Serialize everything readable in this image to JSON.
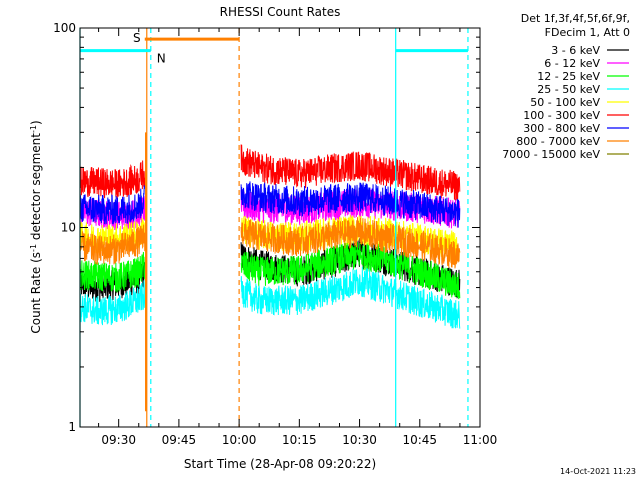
{
  "chart_data": {
    "type": "line",
    "title": "RHESSI Count Rates",
    "xlabel": "Start Time (28-Apr-08 09:20:22)",
    "ylabel_parts": [
      "Count Rate (s",
      "-1",
      " detector segment",
      "-1",
      ")"
    ],
    "y_scale": "log",
    "ylim": [
      1,
      100
    ],
    "y_ticks": [
      {
        "value": 1,
        "label": "1"
      },
      {
        "value": 10,
        "label": "10"
      },
      {
        "value": 100,
        "label": "100"
      }
    ],
    "xlim": [
      "09:20:22",
      "11:00:00"
    ],
    "x_ticks": [
      {
        "value": "09:30",
        "label": "09:30"
      },
      {
        "value": "09:45",
        "label": "09:45"
      },
      {
        "value": "10:00",
        "label": "10:00"
      },
      {
        "value": "10:15",
        "label": "10:15"
      },
      {
        "value": "10:30",
        "label": "10:30"
      },
      {
        "value": "10:45",
        "label": "10:45"
      },
      {
        "value": "11:00",
        "label": "11:00"
      }
    ],
    "legend_header": [
      "Det 1f,3f,4f,5f,6f,9f,",
      "FDecim 1, Att 0"
    ],
    "legend_position": "right",
    "series": [
      {
        "name": "3 - 6 keV",
        "color": "#000000",
        "segments": [
          {
            "x": [
              "09:20:22",
              "09:25",
              "09:30",
              "09:35",
              "09:36:30"
            ],
            "y": [
              5.2,
              5.0,
              5.2,
              5.5,
              6.0
            ]
          },
          {
            "x": [
              "10:00:30",
              "10:05",
              "10:15",
              "10:25",
              "10:30",
              "10:35",
              "10:45",
              "10:55"
            ],
            "y": [
              7.2,
              6.5,
              6.0,
              6.8,
              7.5,
              7.0,
              6.0,
              5.2
            ]
          }
        ]
      },
      {
        "name": "6 - 12 keV",
        "color": "#ff00ff",
        "segments": [
          {
            "x": [
              "09:20:22",
              "09:25",
              "09:30",
              "09:35",
              "09:36:30"
            ],
            "y": [
              12.0,
              11.8,
              11.5,
              11.8,
              12.5
            ]
          },
          {
            "x": [
              "10:00:30",
              "10:05",
              "10:15",
              "10:25",
              "10:30",
              "10:35",
              "10:45",
              "10:55"
            ],
            "y": [
              13.0,
              12.5,
              12.2,
              13.0,
              13.3,
              13.0,
              12.5,
              11.6
            ]
          }
        ]
      },
      {
        "name": "12 - 25 keV",
        "color": "#00ff00",
        "segments": [
          {
            "x": [
              "09:20:22",
              "09:25",
              "09:30",
              "09:35",
              "09:36:30"
            ],
            "y": [
              5.8,
              5.7,
              5.6,
              6.0,
              6.5
            ]
          },
          {
            "x": [
              "10:00:30",
              "10:05",
              "10:15",
              "10:25",
              "10:30",
              "10:35",
              "10:45",
              "10:55"
            ],
            "y": [
              6.5,
              6.0,
              6.1,
              7.0,
              7.3,
              7.0,
              6.0,
              5.0
            ]
          }
        ]
      },
      {
        "name": "25 - 50 keV",
        "color": "#00ffff",
        "segments": [
          {
            "x": [
              "09:20:22",
              "09:25",
              "09:30",
              "09:35",
              "09:36:30"
            ],
            "y": [
              4.0,
              3.8,
              3.9,
              4.3,
              4.6
            ]
          },
          {
            "x": [
              "10:00:30",
              "10:05",
              "10:15",
              "10:25",
              "10:30",
              "10:35",
              "10:45",
              "10:55"
            ],
            "y": [
              4.8,
              4.3,
              4.3,
              5.0,
              5.4,
              5.0,
              4.2,
              3.6
            ]
          }
        ]
      },
      {
        "name": "50 - 100 keV",
        "color": "#ffff00",
        "segments": [
          {
            "x": [
              "09:20:22",
              "09:25",
              "09:30",
              "09:35",
              "09:36:30"
            ],
            "y": [
              9.0,
              8.8,
              8.9,
              9.2,
              9.8
            ]
          },
          {
            "x": [
              "10:00:30",
              "10:05",
              "10:15",
              "10:25",
              "10:30",
              "10:35",
              "10:45",
              "10:55"
            ],
            "y": [
              9.8,
              9.2,
              9.0,
              9.6,
              9.8,
              9.5,
              8.8,
              8.0
            ]
          }
        ]
      },
      {
        "name": "100 - 300 keV",
        "color": "#ff0000",
        "segments": [
          {
            "x": [
              "09:20:22",
              "09:25",
              "09:30",
              "09:35",
              "09:36:30"
            ],
            "y": [
              17.0,
              16.8,
              16.5,
              17.5,
              19.0
            ]
          },
          {
            "x": [
              "10:00:30",
              "10:05",
              "10:15",
              "10:25",
              "10:30",
              "10:35",
              "10:45",
              "10:55"
            ],
            "y": [
              22.0,
              20.0,
              18.5,
              20.0,
              20.5,
              19.5,
              17.5,
              16.0
            ]
          }
        ]
      },
      {
        "name": "300 - 800 keV",
        "color": "#0000ff",
        "segments": [
          {
            "x": [
              "09:20:22",
              "09:25",
              "09:30",
              "09:35",
              "09:36:30"
            ],
            "y": [
              12.5,
              12.3,
              12.2,
              12.8,
              14.0
            ]
          },
          {
            "x": [
              "10:00:30",
              "10:05",
              "10:15",
              "10:25",
              "10:30",
              "10:35",
              "10:45",
              "10:55"
            ],
            "y": [
              15.0,
              14.2,
              13.5,
              14.0,
              14.2,
              13.8,
              12.8,
              11.8
            ]
          }
        ]
      },
      {
        "name": "800 - 7000 keV",
        "color": "#ff8000",
        "segments": [
          {
            "x": [
              "09:20:22",
              "09:25",
              "09:30",
              "09:35",
              "09:36:30"
            ],
            "y": [
              8.0,
              7.7,
              7.8,
              8.5,
              9.0
            ]
          },
          {
            "x": [
              "10:00:30",
              "10:05",
              "10:15",
              "10:25",
              "10:30",
              "10:35",
              "10:45",
              "10:55"
            ],
            "y": [
              9.5,
              9.0,
              8.5,
              9.2,
              9.5,
              9.0,
              8.2,
              7.2
            ]
          }
        ]
      },
      {
        "name": "7000 - 15000 keV",
        "color": "#808000",
        "segments": []
      }
    ],
    "spike": {
      "x": "09:36:45",
      "y_from": 1.2,
      "y_to": 30,
      "color": "#ff8000"
    },
    "markers": {
      "s_bar": {
        "label": "S",
        "x_from": "09:36:30",
        "x_to": "10:00:00",
        "y": 88,
        "color": "#ff8000"
      },
      "n_bars": [
        {
          "label": "N",
          "x_from": "09:20:22",
          "x_to": "09:38:00",
          "y": 77,
          "color": "#00ffff"
        },
        {
          "label": "",
          "x_from": "10:39:00",
          "x_to": "10:57:00",
          "y": 77,
          "color": "#00ffff"
        }
      ],
      "vlines": [
        {
          "x": "09:20:22",
          "color": "#00ffff",
          "style": "solid"
        },
        {
          "x": "09:37:00",
          "color": "#ff8000",
          "style": "solid"
        },
        {
          "x": "09:38:00",
          "color": "#00ffff",
          "style": "dashed"
        },
        {
          "x": "10:00:00",
          "color": "#ff8000",
          "style": "dashed"
        },
        {
          "x": "10:39:00",
          "color": "#00ffff",
          "style": "solid"
        },
        {
          "x": "10:57:00",
          "color": "#00ffff",
          "style": "dashed"
        }
      ]
    },
    "timestamp": "14-Oct-2021 11:23"
  }
}
